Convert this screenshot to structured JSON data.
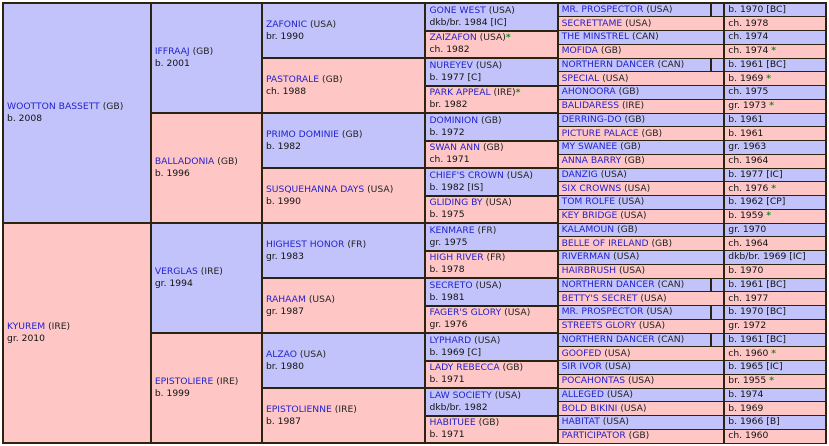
{
  "colors": {
    "male_bg": "#c3c3fb",
    "female_bg": "#ffc6c6",
    "border": "#2c2410",
    "link": "#2222cc",
    "star": "#1a8a1a",
    "swatch_blue": "#4a95e8",
    "swatch_green": "#22d822"
  },
  "gen1": [
    {
      "name": "WOOTTON BASSETT",
      "country": "(GB)",
      "info": "b. 2008",
      "sex": "m"
    },
    {
      "name": "KYUREM",
      "country": "(IRE)",
      "info": "gr. 2010",
      "sex": "f"
    }
  ],
  "gen2": [
    {
      "name": "IFFRAAJ",
      "country": "(GB)",
      "info": "b. 2001",
      "sex": "m"
    },
    {
      "name": "BALLADONIA",
      "country": "(GB)",
      "info": "b. 1996",
      "sex": "f"
    },
    {
      "name": "VERGLAS",
      "country": "(IRE)",
      "info": "gr. 1994",
      "sex": "m"
    },
    {
      "name": "EPISTOLIERE",
      "country": "(IRE)",
      "info": "b. 1999",
      "sex": "f"
    }
  ],
  "gen3": [
    {
      "name": "ZAFONIC",
      "country": "(USA)",
      "info": "br. 1990",
      "sex": "m"
    },
    {
      "name": "PASTORALE",
      "country": "(GB)",
      "info": "ch. 1988",
      "sex": "f"
    },
    {
      "name": "PRIMO DOMINIE",
      "country": "(GB)",
      "info": "b. 1982",
      "sex": "m"
    },
    {
      "name": "SUSQUEHANNA DAYS",
      "country": "(USA)",
      "info": "b. 1990",
      "sex": "f"
    },
    {
      "name": "HIGHEST HONOR",
      "country": "(FR)",
      "info": "gr. 1983",
      "sex": "m"
    },
    {
      "name": "RAHAAM",
      "country": "(USA)",
      "info": "gr. 1987",
      "sex": "f"
    },
    {
      "name": "ALZAO",
      "country": "(USA)",
      "info": "br. 1980",
      "sex": "m"
    },
    {
      "name": "EPISTOLIENNE",
      "country": "(IRE)",
      "info": "b. 1987",
      "sex": "f"
    }
  ],
  "gen4": [
    {
      "name": "GONE WEST",
      "country": "(USA)",
      "star": "",
      "info": "dkb/br. 1984 [IC]",
      "sex": "m"
    },
    {
      "name": "ZAIZAFON",
      "country": "(USA)",
      "star": "*",
      "info": "ch. 1982",
      "sex": "f"
    },
    {
      "name": "NUREYEV",
      "country": "(USA)",
      "star": "",
      "info": "b. 1977 [C]",
      "sex": "m"
    },
    {
      "name": "PARK APPEAL",
      "country": "(IRE)",
      "star": "*",
      "info": "br. 1982",
      "sex": "f"
    },
    {
      "name": "DOMINION",
      "country": "(GB)",
      "star": "",
      "info": "b. 1972",
      "sex": "m"
    },
    {
      "name": "SWAN ANN",
      "country": "(GB)",
      "star": "",
      "info": "ch. 1971",
      "sex": "f"
    },
    {
      "name": "CHIEF'S CROWN",
      "country": "(USA)",
      "star": "",
      "info": "b. 1982 [IS]",
      "sex": "m"
    },
    {
      "name": "GLIDING BY",
      "country": "(USA)",
      "star": "",
      "info": "b. 1975",
      "sex": "f"
    },
    {
      "name": "KENMARE",
      "country": "(FR)",
      "star": "",
      "info": "gr. 1975",
      "sex": "m"
    },
    {
      "name": "HIGH RIVER",
      "country": "(FR)",
      "star": "",
      "info": "b. 1978",
      "sex": "f"
    },
    {
      "name": "SECRETO",
      "country": "(USA)",
      "star": "",
      "info": "b. 1981",
      "sex": "m"
    },
    {
      "name": "FAGER'S GLORY",
      "country": "(USA)",
      "star": "",
      "info": "gr. 1976",
      "sex": "f"
    },
    {
      "name": "LYPHARD",
      "country": "(USA)",
      "star": "",
      "info": "b. 1969 [C]",
      "sex": "m"
    },
    {
      "name": "LADY REBECCA",
      "country": "(GB)",
      "star": "",
      "info": "b. 1971",
      "sex": "f"
    },
    {
      "name": "LAW SOCIETY",
      "country": "(USA)",
      "star": "",
      "info": "dkb/br. 1982",
      "sex": "m"
    },
    {
      "name": "HABITUEE",
      "country": "(GB)",
      "star": "",
      "info": "b. 1971",
      "sex": "f"
    }
  ],
  "gen5": [
    {
      "name": "MR. PROSPECTOR",
      "country": "(USA)",
      "info": "b. 1970 [BC]",
      "star": "",
      "swatch": "blue",
      "sex": "m"
    },
    {
      "name": "SECRETTAME",
      "country": "(USA)",
      "info": "ch. 1978",
      "star": "",
      "swatch": "",
      "sex": "f"
    },
    {
      "name": "THE MINSTREL",
      "country": "(CAN)",
      "info": "ch. 1974",
      "star": "",
      "swatch": "",
      "sex": "m"
    },
    {
      "name": "MOFIDA",
      "country": "(GB)",
      "info": "ch. 1974",
      "star": "*",
      "swatch": "",
      "sex": "f"
    },
    {
      "name": "NORTHERN DANCER",
      "country": "(CAN)",
      "info": "b. 1961 [BC]",
      "star": "",
      "swatch": "green",
      "sex": "m"
    },
    {
      "name": "SPECIAL",
      "country": "(USA)",
      "info": "b. 1969",
      "star": "*",
      "swatch": "",
      "sex": "f"
    },
    {
      "name": "AHONOORA",
      "country": "(GB)",
      "info": "ch. 1975",
      "star": "",
      "swatch": "",
      "sex": "m"
    },
    {
      "name": "BALIDARESS",
      "country": "(IRE)",
      "info": "gr. 1973",
      "star": "*",
      "swatch": "",
      "sex": "f"
    },
    {
      "name": "DERRING-DO",
      "country": "(GB)",
      "info": "b. 1961",
      "star": "",
      "swatch": "",
      "sex": "m"
    },
    {
      "name": "PICTURE PALACE",
      "country": "(GB)",
      "info": "b. 1961",
      "star": "",
      "swatch": "",
      "sex": "f"
    },
    {
      "name": "MY SWANEE",
      "country": "(GB)",
      "info": "gr. 1963",
      "star": "",
      "swatch": "",
      "sex": "m"
    },
    {
      "name": "ANNA BARRY",
      "country": "(GB)",
      "info": "ch. 1964",
      "star": "",
      "swatch": "",
      "sex": "f"
    },
    {
      "name": "DANZIG",
      "country": "(USA)",
      "info": "b. 1977 [IC]",
      "star": "",
      "swatch": "",
      "sex": "m"
    },
    {
      "name": "SIX CROWNS",
      "country": "(USA)",
      "info": "ch. 1976",
      "star": "*",
      "swatch": "",
      "sex": "f"
    },
    {
      "name": "TOM ROLFE",
      "country": "(USA)",
      "info": "b. 1962 [CP]",
      "star": "",
      "swatch": "",
      "sex": "m"
    },
    {
      "name": "KEY BRIDGE",
      "country": "(USA)",
      "info": "b. 1959",
      "star": "*",
      "swatch": "",
      "sex": "f"
    },
    {
      "name": "KALAMOUN",
      "country": "(GB)",
      "info": "gr. 1970",
      "star": "",
      "swatch": "",
      "sex": "m"
    },
    {
      "name": "BELLE OF IRELAND",
      "country": "(GB)",
      "info": "ch. 1964",
      "star": "",
      "swatch": "",
      "sex": "f"
    },
    {
      "name": "RIVERMAN",
      "country": "(USA)",
      "info": "dkb/br. 1969 [IC]",
      "star": "",
      "swatch": "",
      "sex": "m"
    },
    {
      "name": "HAIRBRUSH",
      "country": "(USA)",
      "info": "b. 1970",
      "star": "",
      "swatch": "",
      "sex": "f"
    },
    {
      "name": "NORTHERN DANCER",
      "country": "(CAN)",
      "info": "b. 1961 [BC]",
      "star": "",
      "swatch": "green",
      "sex": "m"
    },
    {
      "name": "BETTY'S SECRET",
      "country": "(USA)",
      "info": "ch. 1977",
      "star": "",
      "swatch": "",
      "sex": "f"
    },
    {
      "name": "MR. PROSPECTOR",
      "country": "(USA)",
      "info": "b. 1970 [BC]",
      "star": "",
      "swatch": "blue",
      "sex": "m"
    },
    {
      "name": "STREETS GLORY",
      "country": "(USA)",
      "info": "gr. 1972",
      "star": "",
      "swatch": "",
      "sex": "f"
    },
    {
      "name": "NORTHERN DANCER",
      "country": "(CAN)",
      "info": "b. 1961 [BC]",
      "star": "",
      "swatch": "green",
      "sex": "m"
    },
    {
      "name": "GOOFED",
      "country": "(USA)",
      "info": "ch. 1960",
      "star": "*",
      "swatch": "",
      "sex": "f"
    },
    {
      "name": "SIR IVOR",
      "country": "(USA)",
      "info": "b. 1965 [IC]",
      "star": "",
      "swatch": "",
      "sex": "m"
    },
    {
      "name": "POCAHONTAS",
      "country": "(USA)",
      "info": "br. 1955",
      "star": "*",
      "swatch": "",
      "sex": "f"
    },
    {
      "name": "ALLEGED",
      "country": "(USA)",
      "info": "b. 1974",
      "star": "",
      "swatch": "",
      "sex": "m"
    },
    {
      "name": "BOLD BIKINI",
      "country": "(USA)",
      "info": "b. 1969",
      "star": "",
      "swatch": "",
      "sex": "f"
    },
    {
      "name": "HABITAT",
      "country": "(USA)",
      "info": "b. 1966 [B]",
      "star": "",
      "swatch": "",
      "sex": "m"
    },
    {
      "name": "PARTICIPATOR",
      "country": "(GB)",
      "info": "ch. 1960",
      "star": "",
      "swatch": "",
      "sex": "f"
    }
  ]
}
